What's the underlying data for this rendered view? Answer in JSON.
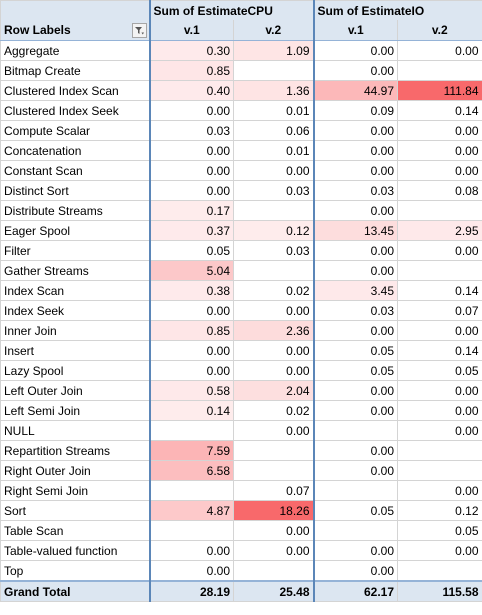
{
  "header": {
    "row_labels": "Row Labels",
    "group1": "Sum of EstimateCPU",
    "group2": "Sum of EstimateIO",
    "v1": "v.1",
    "v2": "v.2",
    "filter_icon": "filter-dropdown-icon"
  },
  "heat_color": "#f8696b",
  "rows": [
    {
      "label": "Aggregate",
      "cpu1": "0.30",
      "cpu2": "1.09",
      "io1": "0.00",
      "io2": "0.00",
      "h": [
        0.02,
        0.06,
        0,
        0
      ]
    },
    {
      "label": "Bitmap Create",
      "cpu1": "0.85",
      "cpu2": "",
      "io1": "0.00",
      "io2": "",
      "h": [
        0.05,
        0,
        0,
        0
      ]
    },
    {
      "label": "Clustered Index Scan",
      "cpu1": "0.40",
      "cpu2": "1.36",
      "io1": "44.97",
      "io2": "111.84",
      "h": [
        0.02,
        0.07,
        0.4,
        1
      ]
    },
    {
      "label": "Clustered Index Seek",
      "cpu1": "0.00",
      "cpu2": "0.01",
      "io1": "0.09",
      "io2": "0.14",
      "h": [
        0,
        0,
        0,
        0
      ]
    },
    {
      "label": "Compute Scalar",
      "cpu1": "0.03",
      "cpu2": "0.06",
      "io1": "0.00",
      "io2": "0.00",
      "h": [
        0,
        0,
        0,
        0
      ]
    },
    {
      "label": "Concatenation",
      "cpu1": "0.00",
      "cpu2": "0.01",
      "io1": "0.00",
      "io2": "0.00",
      "h": [
        0,
        0,
        0,
        0
      ]
    },
    {
      "label": "Constant Scan",
      "cpu1": "0.00",
      "cpu2": "0.00",
      "io1": "0.00",
      "io2": "0.00",
      "h": [
        0,
        0,
        0,
        0
      ]
    },
    {
      "label": "Distinct Sort",
      "cpu1": "0.00",
      "cpu2": "0.03",
      "io1": "0.03",
      "io2": "0.08",
      "h": [
        0,
        0,
        0,
        0
      ]
    },
    {
      "label": "Distribute Streams",
      "cpu1": "0.17",
      "cpu2": "",
      "io1": "0.00",
      "io2": "",
      "h": [
        0.01,
        0,
        0,
        0
      ]
    },
    {
      "label": "Eager Spool",
      "cpu1": "0.37",
      "cpu2": "0.12",
      "io1": "13.45",
      "io2": "2.95",
      "h": [
        0.02,
        0.01,
        0.12,
        0.03
      ]
    },
    {
      "label": "Filter",
      "cpu1": "0.05",
      "cpu2": "0.03",
      "io1": "0.00",
      "io2": "0.00",
      "h": [
        0,
        0,
        0,
        0
      ]
    },
    {
      "label": "Gather Streams",
      "cpu1": "5.04",
      "cpu2": "",
      "io1": "0.00",
      "io2": "",
      "h": [
        0.28,
        0,
        0,
        0
      ]
    },
    {
      "label": "Index Scan",
      "cpu1": "0.38",
      "cpu2": "0.02",
      "io1": "3.45",
      "io2": "0.14",
      "h": [
        0.02,
        0,
        0.03,
        0
      ]
    },
    {
      "label": "Index Seek",
      "cpu1": "0.00",
      "cpu2": "0.00",
      "io1": "0.03",
      "io2": "0.07",
      "h": [
        0,
        0,
        0,
        0
      ]
    },
    {
      "label": "Inner Join",
      "cpu1": "0.85",
      "cpu2": "2.36",
      "io1": "0.00",
      "io2": "0.00",
      "h": [
        0.05,
        0.13,
        0,
        0
      ]
    },
    {
      "label": "Insert",
      "cpu1": "0.00",
      "cpu2": "0.00",
      "io1": "0.05",
      "io2": "0.14",
      "h": [
        0,
        0,
        0,
        0
      ]
    },
    {
      "label": "Lazy Spool",
      "cpu1": "0.00",
      "cpu2": "0.00",
      "io1": "0.05",
      "io2": "0.05",
      "h": [
        0,
        0,
        0,
        0
      ]
    },
    {
      "label": "Left Outer Join",
      "cpu1": "0.58",
      "cpu2": "2.04",
      "io1": "0.00",
      "io2": "0.00",
      "h": [
        0.03,
        0.11,
        0,
        0
      ]
    },
    {
      "label": "Left Semi Join",
      "cpu1": "0.14",
      "cpu2": "0.02",
      "io1": "0.00",
      "io2": "0.00",
      "h": [
        0.01,
        0,
        0,
        0
      ]
    },
    {
      "label": "NULL",
      "cpu1": "",
      "cpu2": "0.00",
      "io1": "",
      "io2": "0.00",
      "h": [
        0,
        0,
        0,
        0
      ]
    },
    {
      "label": "Repartition Streams",
      "cpu1": "7.59",
      "cpu2": "",
      "io1": "0.00",
      "io2": "",
      "h": [
        0.42,
        0,
        0,
        0
      ]
    },
    {
      "label": "Right Outer Join",
      "cpu1": "6.58",
      "cpu2": "",
      "io1": "0.00",
      "io2": "",
      "h": [
        0.36,
        0,
        0,
        0
      ]
    },
    {
      "label": "Right Semi Join",
      "cpu1": "",
      "cpu2": "0.07",
      "io1": "",
      "io2": "0.00",
      "h": [
        0,
        0,
        0,
        0
      ]
    },
    {
      "label": "Sort",
      "cpu1": "4.87",
      "cpu2": "18.26",
      "io1": "0.05",
      "io2": "0.12",
      "h": [
        0.27,
        1,
        0,
        0
      ]
    },
    {
      "label": "Table Scan",
      "cpu1": "",
      "cpu2": "0.00",
      "io1": "",
      "io2": "0.05",
      "h": [
        0,
        0,
        0,
        0
      ]
    },
    {
      "label": "Table-valued function",
      "cpu1": "0.00",
      "cpu2": "0.00",
      "io1": "0.00",
      "io2": "0.00",
      "h": [
        0,
        0,
        0,
        0
      ]
    },
    {
      "label": "Top",
      "cpu1": "0.00",
      "cpu2": "",
      "io1": "0.00",
      "io2": "",
      "h": [
        0,
        0,
        0,
        0
      ]
    }
  ],
  "total": {
    "label": "Grand Total",
    "cpu1": "28.19",
    "cpu2": "25.48",
    "io1": "62.17",
    "io2": "115.58"
  }
}
